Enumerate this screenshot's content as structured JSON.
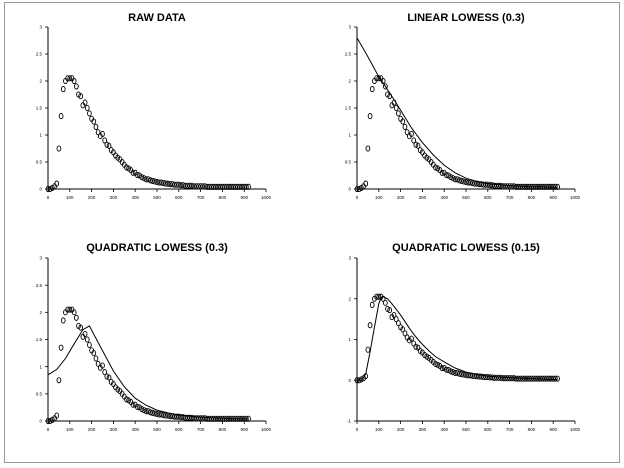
{
  "figure": {
    "border_color": "#9a9a9a",
    "ink_color": "#000000"
  },
  "chart_data": [
    {
      "type": "scatter",
      "title": "RAW DATA",
      "xlabel": "",
      "ylabel": "",
      "xlim": [
        0,
        1000
      ],
      "ylim": [
        0,
        3
      ],
      "grid": false,
      "xticks": [
        0,
        100,
        200,
        300,
        400,
        500,
        600,
        700,
        800,
        900,
        1000
      ],
      "yticks": [
        0,
        0.5,
        1,
        1.5,
        2,
        2.5,
        3
      ],
      "xtick_labels": [
        "0",
        "100",
        "200",
        "300",
        "400",
        "500",
        "600",
        "700",
        "800",
        "900",
        "1000"
      ],
      "ytick_labels": [
        "0",
        "0.5",
        "1",
        "1.5",
        "2",
        "2.5",
        "3"
      ],
      "series": [
        {
          "kind": "points",
          "marker": "open-circle",
          "x": [
            0,
            10,
            20,
            30,
            40,
            50,
            60,
            70,
            80,
            90,
            100,
            110,
            120,
            130,
            140,
            150,
            160,
            170,
            180,
            190,
            200,
            210,
            220,
            230,
            240,
            250,
            260,
            270,
            280,
            290,
            300,
            310,
            320,
            330,
            340,
            350,
            360,
            370,
            380,
            390,
            400,
            410,
            420,
            430,
            440,
            450,
            460,
            470,
            480,
            490,
            500,
            510,
            520,
            530,
            540,
            550,
            560,
            570,
            580,
            590,
            600,
            610,
            620,
            630,
            640,
            650,
            660,
            670,
            680,
            690,
            700,
            710,
            720,
            730,
            740,
            750,
            760,
            770,
            780,
            790,
            800,
            810,
            820,
            830,
            840,
            850,
            860,
            870,
            880,
            890,
            900,
            910,
            920
          ],
          "y": [
            0.0,
            0.0,
            0.02,
            0.05,
            0.1,
            0.75,
            1.35,
            1.85,
            2.0,
            2.05,
            2.05,
            2.05,
            2.0,
            1.9,
            1.75,
            1.72,
            1.55,
            1.6,
            1.5,
            1.4,
            1.3,
            1.25,
            1.15,
            1.05,
            0.98,
            1.02,
            0.9,
            0.82,
            0.8,
            0.72,
            0.68,
            0.62,
            0.58,
            0.55,
            0.5,
            0.45,
            0.4,
            0.38,
            0.35,
            0.3,
            0.3,
            0.26,
            0.25,
            0.22,
            0.2,
            0.18,
            0.18,
            0.16,
            0.15,
            0.14,
            0.13,
            0.12,
            0.12,
            0.11,
            0.1,
            0.1,
            0.09,
            0.09,
            0.08,
            0.08,
            0.08,
            0.07,
            0.07,
            0.06,
            0.06,
            0.06,
            0.06,
            0.05,
            0.05,
            0.05,
            0.05,
            0.05,
            0.05,
            0.04,
            0.04,
            0.04,
            0.04,
            0.04,
            0.04,
            0.04,
            0.04,
            0.04,
            0.04,
            0.04,
            0.04,
            0.04,
            0.04,
            0.04,
            0.04,
            0.04,
            0.04,
            0.04,
            0.04
          ]
        }
      ]
    },
    {
      "type": "scatter",
      "title": "LINEAR LOWESS (0.3)",
      "xlabel": "",
      "ylabel": "",
      "xlim": [
        0,
        1000
      ],
      "ylim": [
        0,
        3
      ],
      "grid": false,
      "xticks": [
        0,
        100,
        200,
        300,
        400,
        500,
        600,
        700,
        800,
        900,
        1000
      ],
      "yticks": [
        0,
        0.5,
        1,
        1.5,
        2,
        2.5,
        3
      ],
      "xtick_labels": [
        "0",
        "100",
        "200",
        "300",
        "400",
        "500",
        "600",
        "700",
        "800",
        "900",
        "1000"
      ],
      "ytick_labels": [
        "0",
        "0.5",
        "1",
        "1.5",
        "2",
        "2.5",
        "3"
      ],
      "series": [
        {
          "kind": "points",
          "marker": "open-circle",
          "x": [
            0,
            10,
            20,
            30,
            40,
            50,
            60,
            70,
            80,
            90,
            100,
            110,
            120,
            130,
            140,
            150,
            160,
            170,
            180,
            190,
            200,
            210,
            220,
            230,
            240,
            250,
            260,
            270,
            280,
            290,
            300,
            310,
            320,
            330,
            340,
            350,
            360,
            370,
            380,
            390,
            400,
            410,
            420,
            430,
            440,
            450,
            460,
            470,
            480,
            490,
            500,
            510,
            520,
            530,
            540,
            550,
            560,
            570,
            580,
            590,
            600,
            610,
            620,
            630,
            640,
            650,
            660,
            670,
            680,
            690,
            700,
            710,
            720,
            730,
            740,
            750,
            760,
            770,
            780,
            790,
            800,
            810,
            820,
            830,
            840,
            850,
            860,
            870,
            880,
            890,
            900,
            910,
            920
          ],
          "y": [
            0.0,
            0.0,
            0.02,
            0.05,
            0.1,
            0.75,
            1.35,
            1.85,
            2.0,
            2.05,
            2.05,
            2.05,
            2.0,
            1.9,
            1.75,
            1.72,
            1.55,
            1.6,
            1.5,
            1.4,
            1.3,
            1.25,
            1.15,
            1.05,
            0.98,
            1.02,
            0.9,
            0.82,
            0.8,
            0.72,
            0.68,
            0.62,
            0.58,
            0.55,
            0.5,
            0.45,
            0.4,
            0.38,
            0.35,
            0.3,
            0.3,
            0.26,
            0.25,
            0.22,
            0.2,
            0.18,
            0.18,
            0.16,
            0.15,
            0.14,
            0.13,
            0.12,
            0.12,
            0.11,
            0.1,
            0.1,
            0.09,
            0.09,
            0.08,
            0.08,
            0.08,
            0.07,
            0.07,
            0.06,
            0.06,
            0.06,
            0.06,
            0.05,
            0.05,
            0.05,
            0.05,
            0.05,
            0.05,
            0.04,
            0.04,
            0.04,
            0.04,
            0.04,
            0.04,
            0.04,
            0.04,
            0.04,
            0.04,
            0.04,
            0.04,
            0.04,
            0.04,
            0.04,
            0.04,
            0.04,
            0.04,
            0.04,
            0.04
          ]
        },
        {
          "kind": "line",
          "x": [
            0,
            50,
            100,
            150,
            200,
            250,
            300,
            350,
            400,
            450,
            500,
            550,
            600,
            650,
            700,
            750,
            800,
            850,
            900,
            920
          ],
          "y": [
            2.8,
            2.45,
            2.08,
            1.78,
            1.46,
            1.13,
            0.86,
            0.63,
            0.44,
            0.3,
            0.2,
            0.14,
            0.1,
            0.08,
            0.06,
            0.05,
            0.04,
            0.04,
            0.03,
            0.03
          ]
        }
      ]
    },
    {
      "type": "scatter",
      "title": "QUADRATIC LOWESS (0.3)",
      "xlabel": "",
      "ylabel": "",
      "xlim": [
        0,
        1000
      ],
      "ylim": [
        0,
        3
      ],
      "grid": false,
      "xticks": [
        0,
        100,
        200,
        300,
        400,
        500,
        600,
        700,
        800,
        900,
        1000
      ],
      "yticks": [
        0,
        0.5,
        1,
        1.5,
        2,
        2.5,
        3
      ],
      "xtick_labels": [
        "0",
        "100",
        "200",
        "300",
        "400",
        "500",
        "600",
        "700",
        "800",
        "900",
        "1000"
      ],
      "ytick_labels": [
        "0",
        "0.5",
        "1",
        "1.5",
        "2",
        "2.5",
        "3"
      ],
      "series": [
        {
          "kind": "points",
          "marker": "open-circle",
          "x": [
            0,
            10,
            20,
            30,
            40,
            50,
            60,
            70,
            80,
            90,
            100,
            110,
            120,
            130,
            140,
            150,
            160,
            170,
            180,
            190,
            200,
            210,
            220,
            230,
            240,
            250,
            260,
            270,
            280,
            290,
            300,
            310,
            320,
            330,
            340,
            350,
            360,
            370,
            380,
            390,
            400,
            410,
            420,
            430,
            440,
            450,
            460,
            470,
            480,
            490,
            500,
            510,
            520,
            530,
            540,
            550,
            560,
            570,
            580,
            590,
            600,
            610,
            620,
            630,
            640,
            650,
            660,
            670,
            680,
            690,
            700,
            710,
            720,
            730,
            740,
            750,
            760,
            770,
            780,
            790,
            800,
            810,
            820,
            830,
            840,
            850,
            860,
            870,
            880,
            890,
            900,
            910,
            920
          ],
          "y": [
            0.0,
            0.0,
            0.02,
            0.05,
            0.1,
            0.75,
            1.35,
            1.85,
            2.0,
            2.05,
            2.05,
            2.05,
            2.0,
            1.9,
            1.75,
            1.72,
            1.55,
            1.6,
            1.5,
            1.4,
            1.3,
            1.25,
            1.15,
            1.05,
            0.98,
            1.02,
            0.9,
            0.82,
            0.8,
            0.72,
            0.68,
            0.62,
            0.58,
            0.55,
            0.5,
            0.45,
            0.4,
            0.38,
            0.35,
            0.3,
            0.3,
            0.26,
            0.25,
            0.22,
            0.2,
            0.18,
            0.18,
            0.16,
            0.15,
            0.14,
            0.13,
            0.12,
            0.12,
            0.11,
            0.1,
            0.1,
            0.09,
            0.09,
            0.08,
            0.08,
            0.08,
            0.07,
            0.07,
            0.06,
            0.06,
            0.06,
            0.06,
            0.05,
            0.05,
            0.05,
            0.05,
            0.05,
            0.05,
            0.04,
            0.04,
            0.04,
            0.04,
            0.04,
            0.04,
            0.04,
            0.04,
            0.04,
            0.04,
            0.04,
            0.04,
            0.04,
            0.04,
            0.04,
            0.04,
            0.04,
            0.04,
            0.04,
            0.04
          ]
        },
        {
          "kind": "line",
          "x": [
            0,
            40,
            80,
            120,
            160,
            190,
            220,
            260,
            300,
            350,
            400,
            450,
            500,
            550,
            600,
            650,
            700,
            750,
            800,
            850,
            900,
            920
          ],
          "y": [
            0.85,
            0.95,
            1.15,
            1.42,
            1.68,
            1.75,
            1.52,
            1.22,
            0.92,
            0.63,
            0.42,
            0.29,
            0.2,
            0.15,
            0.11,
            0.09,
            0.07,
            0.06,
            0.05,
            0.04,
            0.04,
            0.04
          ]
        }
      ]
    },
    {
      "type": "scatter",
      "title": "QUADRATIC LOWESS (0.15)",
      "xlabel": "",
      "ylabel": "",
      "xlim": [
        0,
        1000
      ],
      "ylim": [
        -1,
        3
      ],
      "grid": false,
      "xticks": [
        0,
        100,
        200,
        300,
        400,
        500,
        600,
        700,
        800,
        900,
        1000
      ],
      "yticks": [
        -1,
        0,
        1,
        2,
        3
      ],
      "xtick_labels": [
        "0",
        "100",
        "200",
        "300",
        "400",
        "500",
        "600",
        "700",
        "800",
        "900",
        "1000"
      ],
      "ytick_labels": [
        "-1",
        "0",
        "1",
        "2",
        "3"
      ],
      "series": [
        {
          "kind": "points",
          "marker": "open-circle",
          "x": [
            0,
            10,
            20,
            30,
            40,
            50,
            60,
            70,
            80,
            90,
            100,
            110,
            120,
            130,
            140,
            150,
            160,
            170,
            180,
            190,
            200,
            210,
            220,
            230,
            240,
            250,
            260,
            270,
            280,
            290,
            300,
            310,
            320,
            330,
            340,
            350,
            360,
            370,
            380,
            390,
            400,
            410,
            420,
            430,
            440,
            450,
            460,
            470,
            480,
            490,
            500,
            510,
            520,
            530,
            540,
            550,
            560,
            570,
            580,
            590,
            600,
            610,
            620,
            630,
            640,
            650,
            660,
            670,
            680,
            690,
            700,
            710,
            720,
            730,
            740,
            750,
            760,
            770,
            780,
            790,
            800,
            810,
            820,
            830,
            840,
            850,
            860,
            870,
            880,
            890,
            900,
            910,
            920
          ],
          "y": [
            0.0,
            0.0,
            0.02,
            0.05,
            0.1,
            0.75,
            1.35,
            1.85,
            2.0,
            2.05,
            2.05,
            2.05,
            2.0,
            1.9,
            1.75,
            1.72,
            1.55,
            1.6,
            1.5,
            1.4,
            1.3,
            1.25,
            1.15,
            1.05,
            0.98,
            1.02,
            0.9,
            0.82,
            0.8,
            0.72,
            0.68,
            0.62,
            0.58,
            0.55,
            0.5,
            0.45,
            0.4,
            0.38,
            0.35,
            0.3,
            0.3,
            0.26,
            0.25,
            0.22,
            0.2,
            0.18,
            0.18,
            0.16,
            0.15,
            0.14,
            0.13,
            0.12,
            0.12,
            0.11,
            0.1,
            0.1,
            0.09,
            0.09,
            0.08,
            0.08,
            0.08,
            0.07,
            0.07,
            0.06,
            0.06,
            0.06,
            0.06,
            0.05,
            0.05,
            0.05,
            0.05,
            0.05,
            0.05,
            0.04,
            0.04,
            0.04,
            0.04,
            0.04,
            0.04,
            0.04,
            0.04,
            0.04,
            0.04,
            0.04,
            0.04,
            0.04,
            0.04,
            0.04,
            0.04,
            0.04,
            0.04,
            0.04,
            0.04
          ]
        },
        {
          "kind": "line",
          "x": [
            0,
            20,
            40,
            60,
            80,
            100,
            110,
            120,
            140,
            160,
            180,
            200,
            220,
            240,
            260,
            280,
            300,
            330,
            360,
            400,
            450,
            500,
            550,
            600,
            650,
            700,
            750,
            800,
            850,
            900,
            920
          ],
          "y": [
            0.0,
            0.0,
            0.15,
            0.7,
            1.3,
            1.88,
            2.02,
            2.05,
            2.0,
            1.88,
            1.74,
            1.6,
            1.44,
            1.28,
            1.13,
            1.0,
            0.88,
            0.72,
            0.58,
            0.45,
            0.3,
            0.2,
            0.14,
            0.1,
            0.08,
            0.06,
            0.05,
            0.04,
            0.03,
            0.02,
            0.02
          ]
        }
      ]
    }
  ]
}
